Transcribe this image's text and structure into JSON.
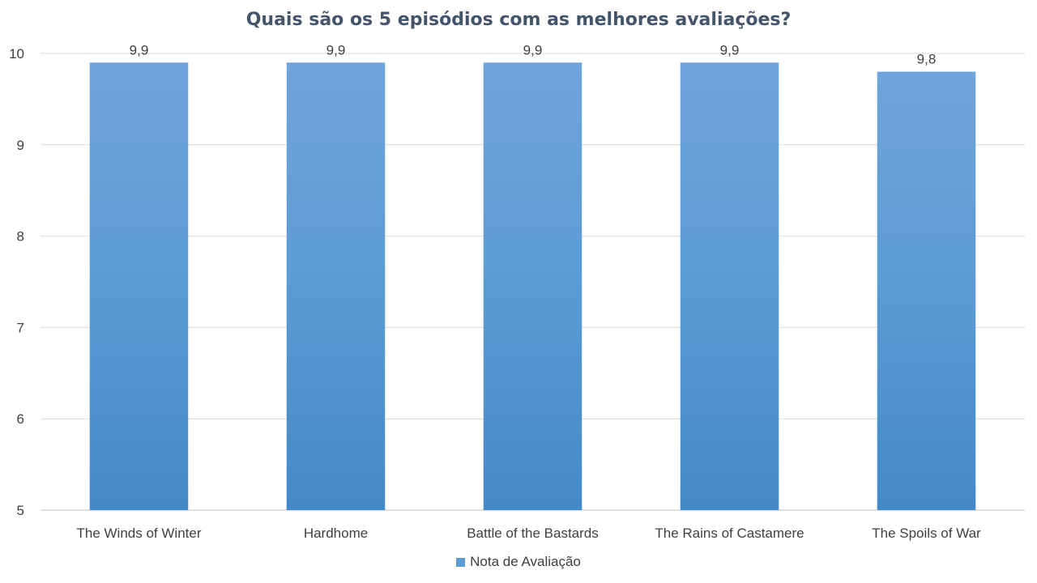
{
  "chart_data": {
    "type": "bar",
    "title": "Quais são os 5 episódios com as melhores avaliações?",
    "xlabel": "",
    "ylabel": "",
    "categories": [
      "The Winds of Winter",
      "Hardhome",
      "Battle of the Bastards",
      "The Rains of Castamere",
      "The Spoils of War"
    ],
    "series": [
      {
        "name": "Nota de Avaliação",
        "values": [
          9.9,
          9.9,
          9.9,
          9.9,
          9.8
        ],
        "data_labels": [
          "9,9",
          "9,9",
          "9,9",
          "9,9",
          "9,8"
        ],
        "color": "#5B9BD5"
      }
    ],
    "ylim": [
      5,
      10
    ],
    "yticks": [
      5,
      6,
      7,
      8,
      9,
      10
    ],
    "ytick_labels": [
      "5",
      "6",
      "7",
      "8",
      "9",
      "10"
    ],
    "grid": true,
    "legend_position": "bottom"
  }
}
